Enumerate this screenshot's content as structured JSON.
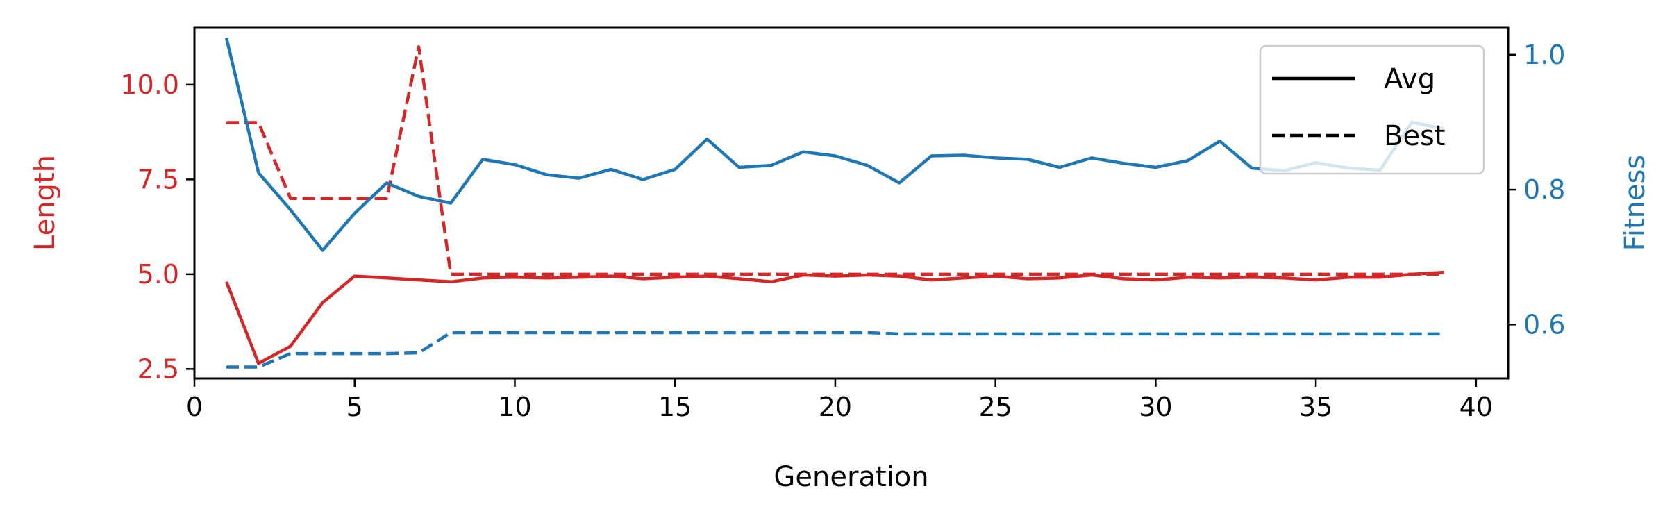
{
  "chart_data": {
    "type": "line",
    "xlabel": "Generation",
    "y_left_label": "Length",
    "y_right_label": "Fitness",
    "xlim": [
      0,
      41
    ],
    "y_left_lim": [
      2.25,
      11.5
    ],
    "y_right_lim": [
      0.52,
      1.04
    ],
    "x_ticks": [
      "0",
      "5",
      "10",
      "15",
      "20",
      "25",
      "30",
      "35",
      "40"
    ],
    "y_left_ticks": [
      "2.5",
      "5.0",
      "7.5",
      "10.0"
    ],
    "y_right_ticks": [
      "0.6",
      "0.8",
      "1.0"
    ],
    "grid": false,
    "legend": {
      "placement": "top-right",
      "entries": [
        {
          "label": "Avg",
          "style": "solid"
        },
        {
          "label": "Best",
          "style": "dashed"
        }
      ]
    },
    "colors": {
      "length": "#d62728",
      "fitness": "#1f77b4"
    },
    "x": [
      1,
      2,
      3,
      4,
      5,
      6,
      7,
      8,
      9,
      10,
      11,
      12,
      13,
      14,
      15,
      16,
      17,
      18,
      19,
      20,
      21,
      22,
      23,
      24,
      25,
      26,
      27,
      28,
      29,
      30,
      31,
      32,
      33,
      34,
      35,
      36,
      37,
      38,
      39
    ],
    "series": [
      {
        "metric": "Length",
        "stat": "Avg",
        "axis": "left",
        "style": "solid",
        "color": "#d62728",
        "values": [
          4.8,
          2.65,
          3.1,
          4.25,
          4.95,
          4.9,
          4.85,
          4.8,
          4.9,
          4.92,
          4.9,
          4.92,
          4.95,
          4.88,
          4.92,
          4.95,
          4.88,
          4.8,
          4.98,
          4.95,
          4.98,
          4.95,
          4.85,
          4.9,
          4.95,
          4.88,
          4.9,
          4.98,
          4.88,
          4.85,
          4.92,
          4.9,
          4.92,
          4.9,
          4.85,
          4.92,
          4.92,
          5.0,
          5.05
        ]
      },
      {
        "metric": "Length",
        "stat": "Best",
        "axis": "left",
        "style": "dashed",
        "color": "#d62728",
        "values": [
          9.0,
          9.0,
          7.0,
          7.0,
          7.0,
          7.0,
          11.0,
          5.0,
          5.0,
          5.0,
          5.0,
          5.0,
          5.0,
          5.0,
          5.0,
          5.0,
          5.0,
          5.0,
          5.0,
          5.0,
          5.0,
          5.0,
          5.0,
          5.0,
          5.0,
          5.0,
          5.0,
          5.0,
          5.0,
          5.0,
          5.0,
          5.0,
          5.0,
          5.0,
          5.0,
          5.0,
          5.0,
          5.0,
          5.0
        ]
      },
      {
        "metric": "Fitness",
        "stat": "Avg",
        "axis": "right",
        "style": "solid",
        "color": "#1f77b4",
        "values": [
          1.025,
          0.825,
          0.77,
          0.71,
          0.765,
          0.81,
          0.79,
          0.78,
          0.845,
          0.837,
          0.822,
          0.817,
          0.83,
          0.815,
          0.83,
          0.875,
          0.833,
          0.836,
          0.856,
          0.85,
          0.836,
          0.81,
          0.85,
          0.851,
          0.847,
          0.845,
          0.833,
          0.847,
          0.839,
          0.833,
          0.843,
          0.872,
          0.832,
          0.828,
          0.84,
          0.832,
          0.829,
          0.9,
          0.89
        ]
      },
      {
        "metric": "Fitness",
        "stat": "Best",
        "axis": "right",
        "style": "dashed",
        "color": "#1f77b4",
        "values": [
          0.537,
          0.537,
          0.557,
          0.557,
          0.557,
          0.557,
          0.558,
          0.588,
          0.588,
          0.588,
          0.588,
          0.588,
          0.588,
          0.588,
          0.588,
          0.588,
          0.588,
          0.588,
          0.588,
          0.588,
          0.588,
          0.586,
          0.586,
          0.586,
          0.586,
          0.586,
          0.586,
          0.586,
          0.586,
          0.586,
          0.586,
          0.586,
          0.586,
          0.586,
          0.586,
          0.586,
          0.586,
          0.586,
          0.586
        ]
      }
    ]
  }
}
